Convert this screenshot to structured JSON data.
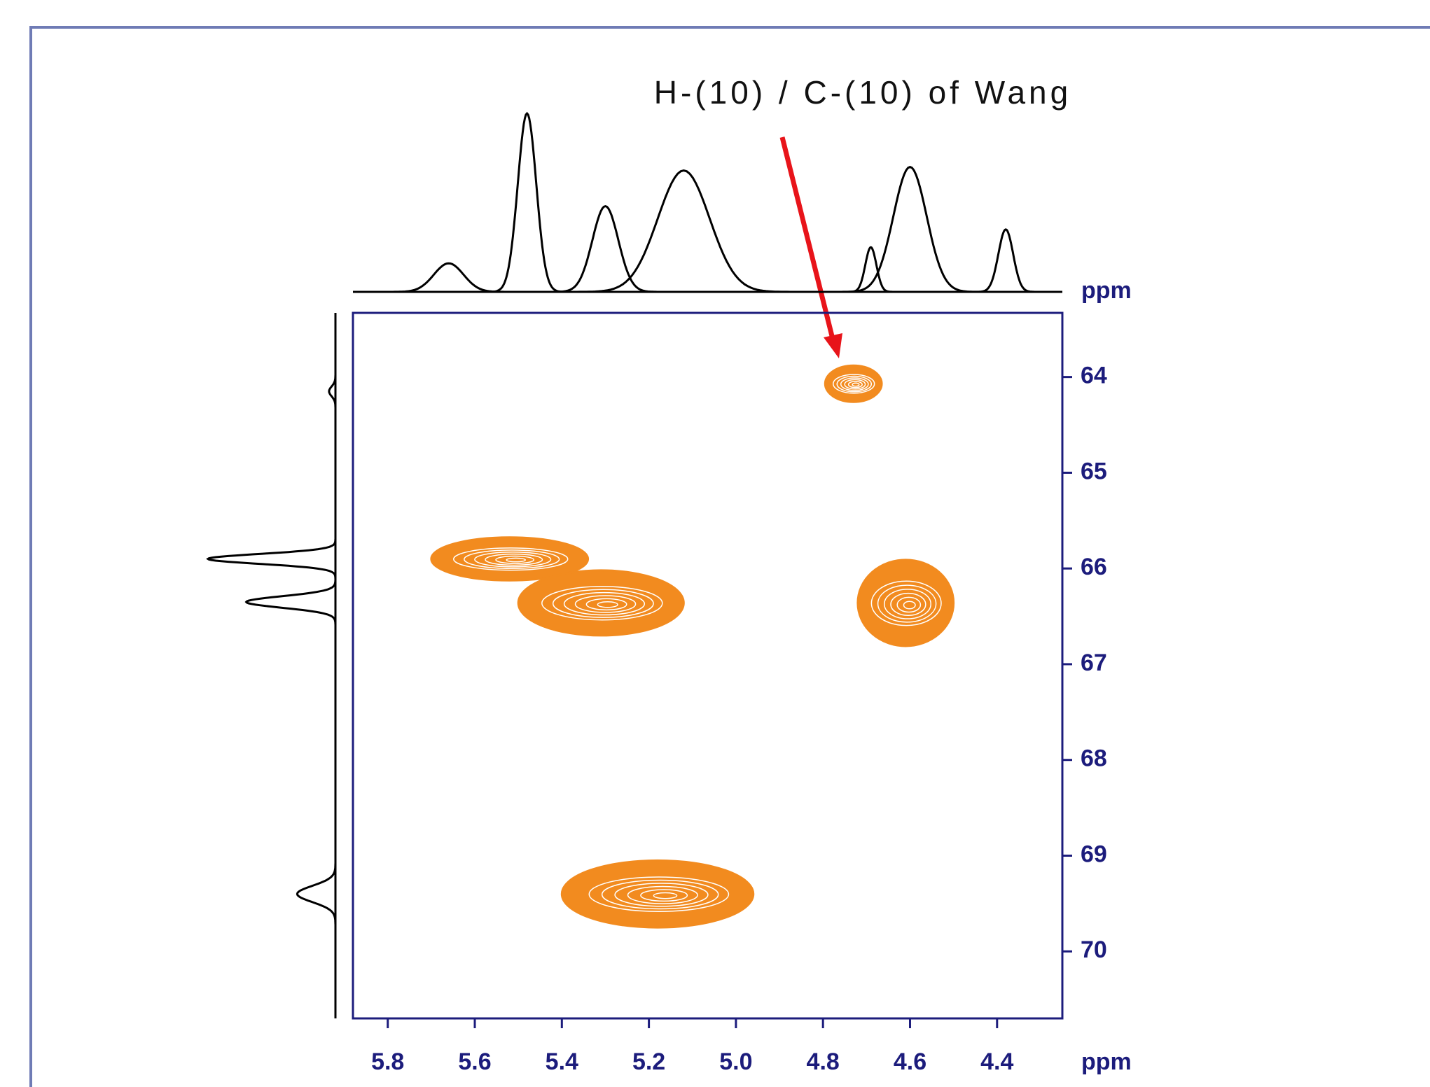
{
  "chart_data": {
    "type": "contour",
    "annotation": "H-(10) / C-(10) of Wang",
    "xlabel": "ppm",
    "ylabel": "ppm",
    "xlim": [
      5.88,
      4.25
    ],
    "ylim": [
      63.33,
      70.7
    ],
    "xticks": [
      {
        "value": 5.8,
        "label": "5.8"
      },
      {
        "value": 5.6,
        "label": "5.6"
      },
      {
        "value": 5.4,
        "label": "5.4"
      },
      {
        "value": 5.2,
        "label": "5.2"
      },
      {
        "value": 5.0,
        "label": "5.0"
      },
      {
        "value": 4.8,
        "label": "4.8"
      },
      {
        "value": 4.6,
        "label": "4.6"
      },
      {
        "value": 4.4,
        "label": "4.4"
      }
    ],
    "yticks": [
      64,
      65,
      66,
      67,
      68,
      69,
      70
    ],
    "color": "#f28b1f",
    "axis_color": "#1c1c7c",
    "peaks": {
      "x": [
        4.73,
        5.52,
        5.31,
        4.61,
        5.18
      ],
      "y": [
        64.07,
        65.9,
        66.36,
        66.36,
        69.4
      ],
      "x_width": [
        0.13,
        0.36,
        0.38,
        0.22,
        0.44
      ],
      "y_width": [
        0.38,
        0.45,
        0.68,
        0.9,
        0.7
      ]
    },
    "projections": {
      "f2": {
        "positions": [
          5.66,
          5.48,
          5.3,
          5.12,
          4.69,
          4.6,
          4.38
        ],
        "heights": [
          0.16,
          1.0,
          0.48,
          0.68,
          0.25,
          0.7,
          0.35
        ],
        "widths": [
          0.08,
          0.05,
          0.07,
          0.14,
          0.03,
          0.09,
          0.04
        ]
      },
      "f1": {
        "positions": [
          64.15,
          65.9,
          66.35,
          69.4
        ],
        "heights": [
          0.05,
          1.0,
          0.7,
          0.3
        ],
        "widths": [
          0.12,
          0.12,
          0.14,
          0.2
        ]
      }
    }
  }
}
